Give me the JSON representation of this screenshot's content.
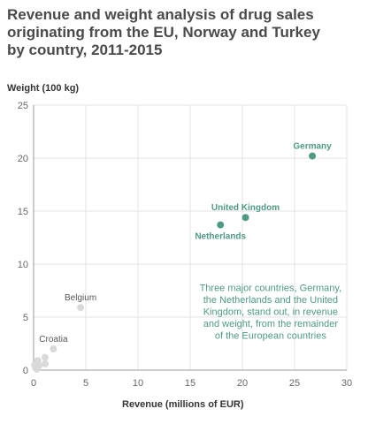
{
  "chart_data": {
    "type": "scatter",
    "title": "Revenue and weight analysis of drug sales originating from the EU, Norway and Turkey by country, 2011-2015",
    "title_lines": [
      "Revenue and weight analysis of drug sales",
      "originating from the EU, Norway and Turkey",
      "by country, 2011-2015"
    ],
    "xlabel": "Revenue (millions of EUR)",
    "ylabel": "Weight (100 kg)",
    "xlim": [
      0,
      30
    ],
    "ylim": [
      0,
      25
    ],
    "x_ticks": [
      "0",
      "5",
      "10",
      "15",
      "20",
      "25",
      "30"
    ],
    "y_ticks": [
      "0",
      "5",
      "10",
      "15",
      "20",
      "25"
    ],
    "grid": true,
    "points": [
      {
        "x": 26.7,
        "y": 20.2,
        "label": "Germany",
        "highlight": true,
        "label_pos": "above"
      },
      {
        "x": 20.3,
        "y": 14.4,
        "label": "United Kingdom",
        "highlight": true,
        "label_pos": "above"
      },
      {
        "x": 17.9,
        "y": 13.7,
        "label": "Netherlands",
        "highlight": true,
        "label_pos": "below"
      },
      {
        "x": 4.5,
        "y": 5.9,
        "label": "Belgium",
        "highlight": false,
        "label_pos": "above"
      },
      {
        "x": 1.9,
        "y": 2.0,
        "label": "Croatia",
        "highlight": false,
        "label_pos": "above"
      },
      {
        "x": 1.1,
        "y": 1.2,
        "label": "",
        "highlight": false
      },
      {
        "x": 1.1,
        "y": 0.6,
        "label": "",
        "highlight": false
      },
      {
        "x": 0.4,
        "y": 0.9,
        "label": "",
        "highlight": false
      },
      {
        "x": 0.5,
        "y": 0.4,
        "label": "",
        "highlight": false
      },
      {
        "x": 0.2,
        "y": 0.2,
        "label": "",
        "highlight": false
      },
      {
        "x": 0.1,
        "y": 0.5,
        "label": "",
        "highlight": false
      },
      {
        "x": 0.3,
        "y": 0.1,
        "label": "",
        "highlight": false
      }
    ],
    "annotation_lines": [
      "Three major countries, Germany,",
      "the Netherlands and the United",
      "Kingdom, stand out, in revenue",
      "and weight, from the remainder",
      "of the European countries"
    ],
    "colors": {
      "highlight": "#4e9a84",
      "other": "#d9d9d9",
      "grid": "#e3e3e3"
    }
  }
}
